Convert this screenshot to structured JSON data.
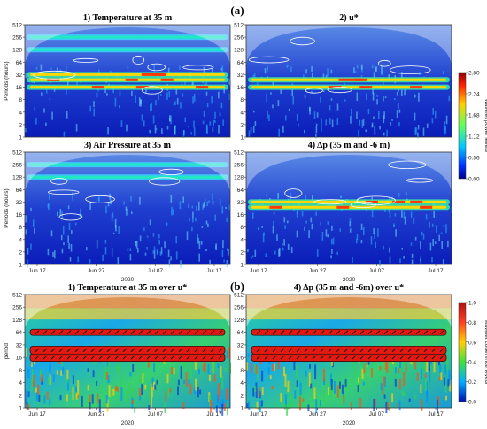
{
  "figure": {
    "label_a": "(a)",
    "label_b": "(b)"
  },
  "chart_data": [
    {
      "type": "heatmap",
      "title": "1) Temperature at 35 m",
      "ylabel": "Periods (hours)",
      "xlabel": "",
      "y_ticks": [
        "512",
        "256",
        "128",
        "64",
        "32",
        "16",
        "8",
        "4",
        "2",
        "1"
      ],
      "x_ticks": [],
      "y_scale": "log2",
      "band_periods": [
        16,
        24,
        32,
        128,
        256
      ],
      "colorscale": "jet"
    },
    {
      "type": "heatmap",
      "title": "2) u*",
      "ylabel": "",
      "xlabel": "",
      "y_ticks": [
        "512",
        "256",
        "128",
        "64",
        "32",
        "16",
        "8",
        "4",
        "2",
        "1"
      ],
      "x_ticks": [],
      "y_scale": "log2",
      "band_periods": [
        16,
        24
      ],
      "colorscale": "jet"
    },
    {
      "type": "heatmap",
      "title": "3) Air Pressure at 35 m",
      "ylabel": "Periods (hours)",
      "xlabel": "2020",
      "y_ticks": [
        "512",
        "256",
        "128",
        "64",
        "32",
        "16",
        "8",
        "4",
        "2",
        "1"
      ],
      "x_ticks": [
        "Jun 17",
        "Jun 27",
        "Jul 07",
        "Jul 17"
      ],
      "y_scale": "log2",
      "band_periods": [
        128,
        256
      ],
      "colorscale": "jet"
    },
    {
      "type": "heatmap",
      "title": "4) Δp (35 m and -6 m)",
      "ylabel": "",
      "xlabel": "2020",
      "y_ticks": [
        "512",
        "256",
        "128",
        "64",
        "32",
        "16",
        "8",
        "4",
        "2",
        "1"
      ],
      "x_ticks": [
        "Jun 17",
        "Jun 27",
        "Jul 07",
        "Jul 17"
      ],
      "y_scale": "log2",
      "band_periods": [
        24,
        32
      ],
      "colorscale": "jet"
    },
    {
      "type": "heatmap",
      "title": "1) Temperature at 35 m over u*",
      "ylabel": "period",
      "xlabel": "2020",
      "y_ticks": [
        "512",
        "256",
        "128",
        "64",
        "32",
        "16",
        "8",
        "4",
        "2",
        "1"
      ],
      "x_ticks": [
        "Jun 17",
        "Jun 27",
        "Jul 07",
        "Jul 17"
      ],
      "y_scale": "log2",
      "band_periods": [
        16,
        24,
        64
      ],
      "colorscale": "jet"
    },
    {
      "type": "heatmap",
      "title": "4) Δp (35 m and -6m) over u*",
      "ylabel": "",
      "xlabel": "2020",
      "y_ticks": [
        "512",
        "256",
        "128",
        "64",
        "32",
        "16",
        "8",
        "4",
        "2",
        "1"
      ],
      "x_ticks": [
        "Jun 17",
        "Jun 27",
        "Jul 07",
        "Jul 17"
      ],
      "y_scale": "log2",
      "band_periods": [
        16,
        24,
        64
      ],
      "colorscale": "jet"
    }
  ],
  "colorbars": [
    {
      "label": "wavelet power levels",
      "ticks": [
        "2.80",
        "2.24",
        "1.68",
        "1.12",
        "0.56",
        "0.00"
      ],
      "range": [
        0.0,
        2.8
      ]
    },
    {
      "label": "wavelet coherence levels",
      "ticks": [
        "1.0",
        "0.8",
        "0.6",
        "0.4",
        "0.2",
        "0.0"
      ],
      "range": [
        0.0,
        1.0
      ]
    }
  ]
}
